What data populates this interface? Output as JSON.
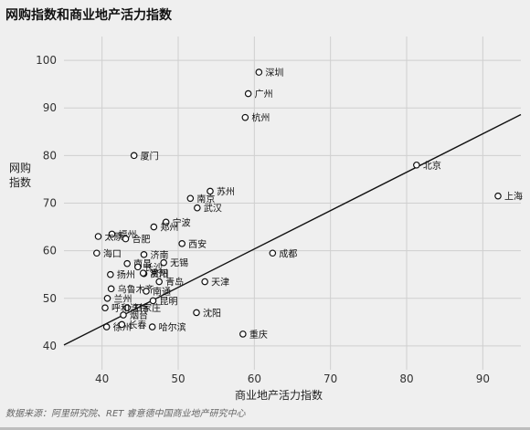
{
  "chart_data": {
    "type": "scatter",
    "title": "网购指数和商业地产活力指数",
    "xlabel": "商业地产活力指数",
    "ylabel": "网购指数",
    "xlim": [
      35,
      95
    ],
    "ylim": [
      35,
      105
    ],
    "xticks": [
      40,
      50,
      60,
      70,
      80,
      90
    ],
    "yticks": [
      40,
      50,
      60,
      70,
      80,
      90,
      100
    ],
    "grid": true,
    "trendline": {
      "x": [
        35,
        95
      ],
      "y": [
        40.2,
        88.6
      ]
    },
    "points": [
      {
        "label": "深圳",
        "x": 60.6,
        "y": 97.5
      },
      {
        "label": "广州",
        "x": 59.2,
        "y": 93
      },
      {
        "label": "杭州",
        "x": 58.8,
        "y": 88
      },
      {
        "label": "厦门",
        "x": 44.2,
        "y": 80
      },
      {
        "label": "北京",
        "x": 81.3,
        "y": 78
      },
      {
        "label": "上海",
        "x": 92,
        "y": 71.5
      },
      {
        "label": "苏州",
        "x": 54.2,
        "y": 72.5
      },
      {
        "label": "南京",
        "x": 51.6,
        "y": 71
      },
      {
        "label": "武汉",
        "x": 52.5,
        "y": 69
      },
      {
        "label": "宁波",
        "x": 48.4,
        "y": 66
      },
      {
        "label": "郑州",
        "x": 46.8,
        "y": 65
      },
      {
        "label": "福州",
        "x": 41.3,
        "y": 63.5
      },
      {
        "label": "合肥",
        "x": 43.1,
        "y": 62.5
      },
      {
        "label": "太原",
        "x": 39.5,
        "y": 63
      },
      {
        "label": "西安",
        "x": 50.5,
        "y": 61.5
      },
      {
        "label": "成都",
        "x": 62.4,
        "y": 59.5
      },
      {
        "label": "海口",
        "x": 39.3,
        "y": 59.5
      },
      {
        "label": "济南",
        "x": 45.5,
        "y": 59.2
      },
      {
        "label": "无锡",
        "x": 48.1,
        "y": 57.5
      },
      {
        "label": "南昌",
        "x": 43.3,
        "y": 57.3
      },
      {
        "label": "贵阳",
        "x": 45.5,
        "y": 55.2
      },
      {
        "label": "长沙",
        "x": 44.7,
        "y": 56.6
      },
      {
        "label": "扬州",
        "x": 41.1,
        "y": 55
      },
      {
        "label": "常州",
        "x": 45.4,
        "y": 55.3
      },
      {
        "label": "青岛",
        "x": 47.5,
        "y": 53.5
      },
      {
        "label": "天津",
        "x": 53.5,
        "y": 53.5
      },
      {
        "label": "乌鲁木齐",
        "x": 41.2,
        "y": 52
      },
      {
        "label": "南通",
        "x": 45.8,
        "y": 51.5
      },
      {
        "label": "兰州",
        "x": 40.7,
        "y": 50
      },
      {
        "label": "昆明",
        "x": 46.7,
        "y": 49.5
      },
      {
        "label": "石家庄",
        "x": 43.3,
        "y": 48
      },
      {
        "label": "呼和浩特",
        "x": 40.4,
        "y": 48
      },
      {
        "label": "沈阳",
        "x": 52.4,
        "y": 47
      },
      {
        "label": "烟台",
        "x": 42.8,
        "y": 46.5
      },
      {
        "label": "徐州",
        "x": 40.6,
        "y": 44
      },
      {
        "label": "长春",
        "x": 42.6,
        "y": 44.5
      },
      {
        "label": "哈尔滨",
        "x": 46.6,
        "y": 44
      },
      {
        "label": "重庆",
        "x": 58.5,
        "y": 42.5
      }
    ]
  },
  "footer": {
    "source": "数据来源：阿里研究院、RET 睿意德中国商业地产研究中心"
  }
}
